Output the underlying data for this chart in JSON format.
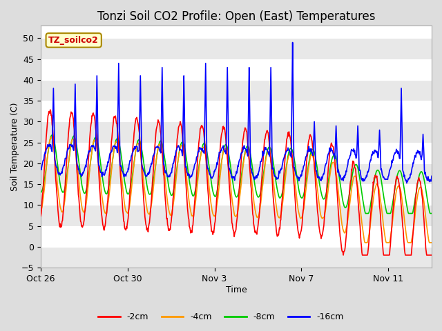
{
  "title": "Tonzi Soil CO2 Profile: Open (East) Temperatures",
  "xlabel": "Time",
  "ylabel": "Soil Temperature (C)",
  "ylim": [
    -5,
    53
  ],
  "yticks": [
    -5,
    0,
    5,
    10,
    15,
    20,
    25,
    30,
    35,
    40,
    45,
    50
  ],
  "annotation_text": "TZ_soilco2",
  "annotation_bg": "#ffffcc",
  "annotation_border": "#aa8800",
  "annotation_text_color": "#cc0000",
  "legend_entries": [
    "-2cm",
    "-4cm",
    "-8cm",
    "-16cm"
  ],
  "line_colors": [
    "#ff0000",
    "#ff9900",
    "#00cc00",
    "#0000ff"
  ],
  "line_width": 1.2,
  "title_fontsize": 12,
  "axis_fontsize": 9,
  "tick_fontsize": 9,
  "xtick_dates": [
    "Oct 26",
    "Oct 30",
    "Nov 3",
    "Nov 7",
    "Nov 11"
  ],
  "xtick_positions": [
    0,
    4,
    8,
    12,
    16
  ],
  "n_days": 18,
  "plot_bg": "#ffffff",
  "fig_bg": "#dddddd",
  "band_color": "#e8e8e8"
}
